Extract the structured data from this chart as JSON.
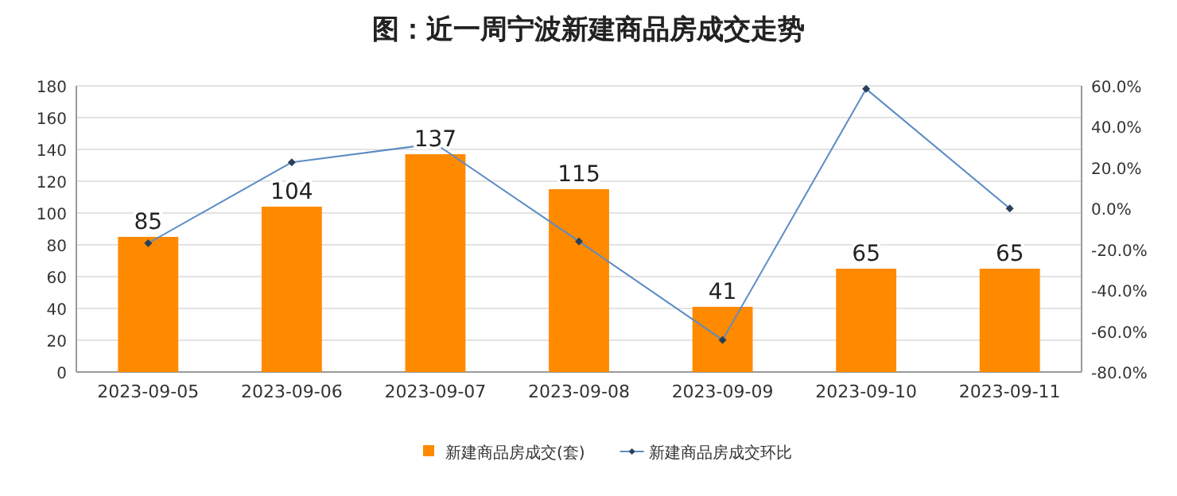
{
  "chart_data": {
    "type": "bar",
    "title": "图：近一周宁波新建商品房成交走势",
    "categories": [
      "2023-09-05",
      "2023-09-06",
      "2023-09-07",
      "2023-09-08",
      "2023-09-09",
      "2023-09-10",
      "2023-09-11"
    ],
    "series": [
      {
        "name": "新建商品房成交(套)",
        "color": "#ff8a00",
        "values": [
          85,
          104,
          137,
          115,
          41,
          65,
          65
        ],
        "value_labels": [
          "85",
          "104",
          "137",
          "115",
          "41",
          "65",
          "65"
        ]
      },
      {
        "name": "新建商品房成交环比",
        "type": "line",
        "axis": "y2",
        "color": "#5b8cc4",
        "marker": "diamond",
        "values": [
          -17,
          22.6,
          31.7,
          -16.1,
          -64.3,
          58.5,
          0
        ]
      }
    ],
    "ylim": [
      0,
      180
    ],
    "yticks": [
      0,
      20,
      40,
      60,
      80,
      100,
      120,
      140,
      160,
      180
    ],
    "y2lim": [
      -80,
      60
    ],
    "y2ticks": [
      {
        "value": -80,
        "label": "-80.0%"
      },
      {
        "value": -60,
        "label": "-60.0%"
      },
      {
        "value": -40,
        "label": "-40.0%"
      },
      {
        "value": -20,
        "label": "-20.0%"
      },
      {
        "value": 0,
        "label": "0.0%"
      },
      {
        "value": 20,
        "label": "20.0%"
      },
      {
        "value": 40,
        "label": "40.0%"
      },
      {
        "value": 60,
        "label": "60.0%"
      }
    ],
    "grid": "y",
    "legend": "bottom"
  }
}
